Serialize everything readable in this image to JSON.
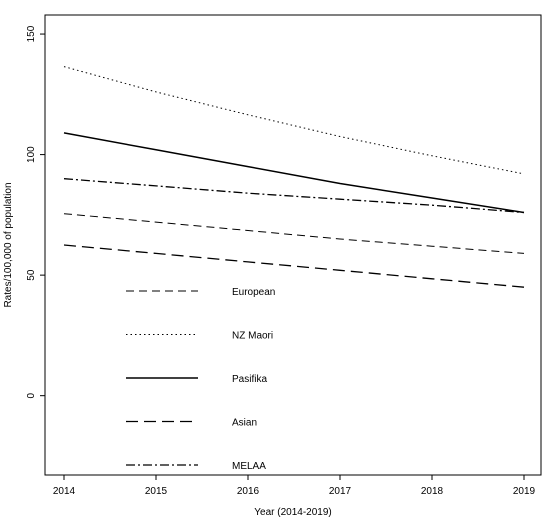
{
  "chart_data": {
    "type": "line",
    "title": "",
    "xlabel": "Year (2014-2019)",
    "ylabel": "Rates/100,000 of population",
    "xlim": [
      2014,
      2019
    ],
    "ylim": [
      -30,
      155
    ],
    "x_ticks": [
      2014,
      2015,
      2016,
      2017,
      2018,
      2019
    ],
    "y_ticks": [
      0,
      50,
      100,
      150
    ],
    "grid": false,
    "legend_position": "lower-left inside plot",
    "x": [
      2014,
      2015,
      2016,
      2017,
      2018,
      2019
    ],
    "series": [
      {
        "name": "European",
        "style": "dashed-short",
        "values": [
          75.5,
          72,
          68.5,
          65,
          62,
          59
        ]
      },
      {
        "name": "NZ Maori",
        "style": "dotted",
        "values": [
          136.5,
          126,
          116.5,
          107.5,
          99.5,
          92
        ]
      },
      {
        "name": "Pasifika",
        "style": "solid",
        "values": [
          109,
          102,
          95,
          88,
          82,
          76
        ]
      },
      {
        "name": "Asian",
        "style": "dashed-long",
        "values": [
          62.5,
          59,
          55.5,
          52,
          48.5,
          45
        ]
      },
      {
        "name": "MELAA",
        "style": "dash-dot",
        "values": [
          90,
          87,
          84,
          81.5,
          79,
          76
        ]
      }
    ]
  }
}
